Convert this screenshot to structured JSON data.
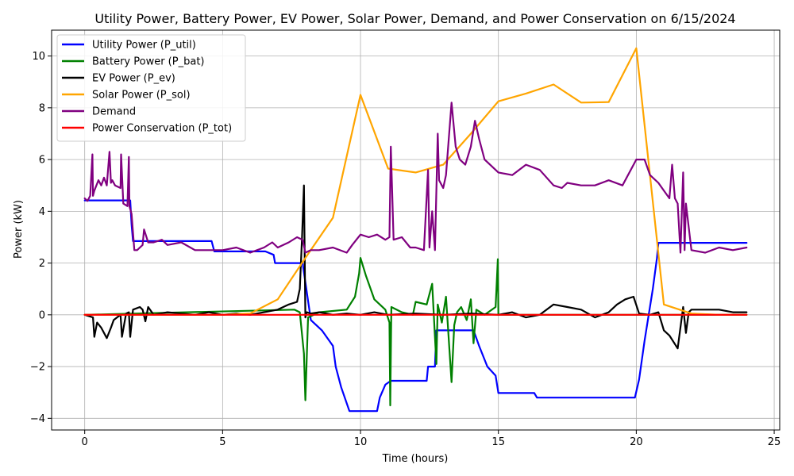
{
  "chart_data": {
    "type": "line",
    "title": "Utility Power, Battery Power, EV Power, Solar Power, Demand, and Power Conservation on 6/15/2024",
    "xlabel": "Time (hours)",
    "ylabel": "Power (kW)",
    "xlim": [
      -1.2,
      25.2
    ],
    "ylim": [
      -4.45,
      11.0
    ],
    "xticks": [
      0,
      5,
      10,
      15,
      20,
      25
    ],
    "yticks": [
      -4,
      -2,
      0,
      2,
      4,
      6,
      8,
      10
    ],
    "grid": true,
    "legend_position": "top-left",
    "series": [
      {
        "name": "Utility Power (P_util)",
        "color": "#0000ff",
        "x": [
          0,
          1.65,
          1.7,
          1.75,
          4.6,
          4.7,
          6.55,
          6.85,
          6.9,
          7.9,
          8.2,
          8.6,
          9.0,
          9.1,
          9.3,
          9.6,
          10.0,
          10.6,
          10.7,
          10.9,
          11.1,
          11.9,
          12.4,
          12.45,
          12.7,
          12.75,
          14.1,
          14.3,
          14.6,
          14.9,
          15.0,
          16.3,
          16.4,
          17.0,
          19.95,
          20.1,
          20.3,
          20.6,
          20.75,
          20.8,
          24.0
        ],
        "values": [
          4.42,
          4.42,
          3.5,
          2.85,
          2.85,
          2.45,
          2.45,
          2.32,
          2.0,
          2.0,
          -0.2,
          -0.6,
          -1.2,
          -2.0,
          -2.8,
          -3.72,
          -3.72,
          -3.72,
          -3.2,
          -2.7,
          -2.55,
          -2.55,
          -2.55,
          -2.0,
          -2.0,
          -0.6,
          -0.6,
          -1.2,
          -2.0,
          -2.35,
          -3.02,
          -3.02,
          -3.2,
          -3.2,
          -3.2,
          -2.5,
          -1.0,
          1.0,
          2.2,
          2.78,
          2.78
        ]
      },
      {
        "name": "Battery Power (P_bat)",
        "color": "#008000",
        "x": [
          0,
          7.6,
          7.8,
          7.95,
          8.0,
          8.1,
          8.5,
          9.5,
          9.8,
          9.95,
          10.0,
          10.2,
          10.5,
          10.9,
          11.05,
          11.08,
          11.12,
          11.5,
          11.9,
          12.0,
          12.4,
          12.6,
          12.75,
          12.8,
          12.95,
          13.1,
          13.3,
          13.4,
          13.5,
          13.65,
          13.85,
          14.0,
          14.1,
          14.2,
          14.5,
          14.9,
          14.98,
          15.0,
          15.05,
          24.0
        ],
        "values": [
          0,
          0.2,
          0.1,
          -1.5,
          -3.3,
          -0.1,
          0.1,
          0.2,
          0.7,
          1.6,
          2.2,
          1.5,
          0.6,
          0.2,
          -0.3,
          -3.5,
          0.3,
          0.1,
          0.0,
          0.5,
          0.4,
          1.2,
          -1.9,
          0.4,
          -0.3,
          0.7,
          -2.6,
          -0.4,
          0.1,
          0.3,
          -0.2,
          0.6,
          -1.1,
          0.2,
          0.0,
          0.3,
          2.15,
          0.0,
          0.0,
          0.0
        ]
      },
      {
        "name": "EV Power (P_ev)",
        "color": "#000000",
        "x": [
          0,
          0.3,
          0.35,
          0.45,
          0.6,
          0.8,
          0.95,
          1.05,
          1.3,
          1.35,
          1.5,
          1.6,
          1.65,
          1.75,
          2.0,
          2.1,
          2.2,
          2.3,
          2.5,
          3.0,
          3.5,
          4.0,
          4.5,
          5.0,
          5.5,
          6.0,
          6.5,
          7.0,
          7.4,
          7.7,
          7.8,
          7.88,
          7.95,
          8.0,
          8.05,
          8.2,
          8.5,
          9.0,
          9.5,
          10.0,
          10.5,
          11.0,
          12.0,
          13.0,
          14.0,
          15.0,
          15.5,
          16.0,
          16.5,
          17.0,
          17.5,
          18.0,
          18.5,
          19.0,
          19.3,
          19.6,
          19.9,
          20.1,
          20.5,
          20.8,
          21.0,
          21.2,
          21.5,
          21.7,
          21.8,
          21.9,
          22.0,
          22.5,
          23.0,
          23.5,
          24.0
        ],
        "values": [
          0,
          -0.1,
          -0.85,
          -0.3,
          -0.5,
          -0.9,
          -0.5,
          -0.2,
          0.0,
          -0.85,
          0.05,
          0.1,
          -0.85,
          0.2,
          0.3,
          0.2,
          -0.25,
          0.3,
          0.0,
          0.1,
          0.05,
          0.0,
          0.1,
          0.0,
          0.05,
          0.0,
          0.1,
          0.2,
          0.4,
          0.5,
          1.0,
          3.0,
          5.0,
          -0.1,
          0.1,
          0.05,
          0.1,
          0.0,
          0.05,
          0.0,
          0.1,
          0.0,
          0.05,
          0.0,
          0.05,
          0.0,
          0.1,
          -0.1,
          0.0,
          0.4,
          0.3,
          0.2,
          -0.1,
          0.1,
          0.4,
          0.6,
          0.7,
          0.05,
          0.0,
          0.1,
          -0.6,
          -0.8,
          -1.3,
          0.3,
          -0.7,
          0.1,
          0.2,
          0.2,
          0.2,
          0.1,
          0.1
        ]
      },
      {
        "name": "Solar Power (P_sol)",
        "color": "#ffa500",
        "x": [
          0,
          5,
          6,
          7,
          8,
          9,
          10,
          11,
          12,
          13,
          14,
          15,
          16,
          17,
          18,
          19,
          20,
          21,
          22,
          23,
          24
        ],
        "values": [
          0,
          0,
          0.05,
          0.6,
          2.2,
          3.75,
          8.5,
          5.65,
          5.5,
          5.8,
          7.0,
          8.25,
          8.55,
          8.9,
          8.2,
          8.22,
          10.3,
          0.4,
          0.05,
          0.0,
          0.0
        ]
      },
      {
        "name": "Demand",
        "color": "#800080",
        "x": [
          0,
          0.1,
          0.2,
          0.28,
          0.3,
          0.35,
          0.5,
          0.6,
          0.7,
          0.8,
          0.9,
          0.95,
          1.0,
          1.1,
          1.3,
          1.32,
          1.4,
          1.55,
          1.6,
          1.62,
          1.7,
          1.8,
          1.9,
          2.0,
          2.1,
          2.15,
          2.3,
          2.5,
          2.8,
          3.0,
          3.5,
          4.0,
          4.5,
          5.0,
          5.5,
          6.0,
          6.5,
          6.8,
          7.0,
          7.4,
          7.7,
          7.9,
          8.0,
          8.2,
          8.5,
          9.0,
          9.5,
          9.7,
          10.0,
          10.3,
          10.6,
          10.9,
          11.05,
          11.1,
          11.2,
          11.5,
          11.8,
          12.0,
          12.3,
          12.45,
          12.5,
          12.6,
          12.7,
          12.8,
          12.85,
          13.0,
          13.1,
          13.2,
          13.3,
          13.45,
          13.6,
          13.8,
          14.0,
          14.15,
          14.3,
          14.5,
          15.0,
          15.5,
          16.0,
          16.5,
          17.0,
          17.3,
          17.5,
          18.0,
          18.5,
          19.0,
          19.5,
          20.0,
          20.3,
          20.5,
          20.8,
          21.0,
          21.2,
          21.3,
          21.4,
          21.5,
          21.6,
          21.7,
          21.75,
          21.8,
          22.0,
          22.5,
          23.0,
          23.5,
          24.0
        ],
        "values": [
          4.5,
          4.4,
          4.6,
          6.2,
          4.6,
          4.8,
          5.2,
          5.0,
          5.3,
          5.0,
          6.3,
          5.1,
          5.2,
          5.0,
          4.9,
          6.2,
          4.3,
          4.2,
          6.1,
          4.2,
          3.9,
          2.5,
          2.5,
          2.6,
          2.7,
          3.3,
          2.8,
          2.8,
          2.9,
          2.7,
          2.8,
          2.5,
          2.5,
          2.5,
          2.6,
          2.4,
          2.6,
          2.8,
          2.6,
          2.8,
          3.0,
          2.9,
          2.4,
          2.5,
          2.5,
          2.6,
          2.4,
          2.7,
          3.1,
          3.0,
          3.1,
          2.9,
          3.0,
          6.5,
          2.9,
          3.0,
          2.6,
          2.6,
          2.5,
          5.6,
          2.6,
          4.0,
          2.5,
          7.0,
          5.2,
          4.9,
          5.4,
          6.8,
          8.2,
          6.5,
          6.0,
          5.8,
          6.5,
          7.5,
          6.8,
          6.0,
          5.5,
          5.4,
          5.8,
          5.6,
          5.0,
          4.9,
          5.1,
          5.0,
          5.0,
          5.2,
          5.0,
          6.0,
          6.0,
          5.4,
          5.1,
          4.8,
          4.5,
          5.8,
          4.5,
          4.3,
          2.4,
          5.5,
          2.5,
          4.3,
          2.5,
          2.4,
          2.6,
          2.5,
          2.6
        ]
      },
      {
        "name": "Power Conservation (P_tot)",
        "color": "#ff0000",
        "x": [
          0,
          24
        ],
        "values": [
          0,
          0
        ]
      }
    ]
  }
}
